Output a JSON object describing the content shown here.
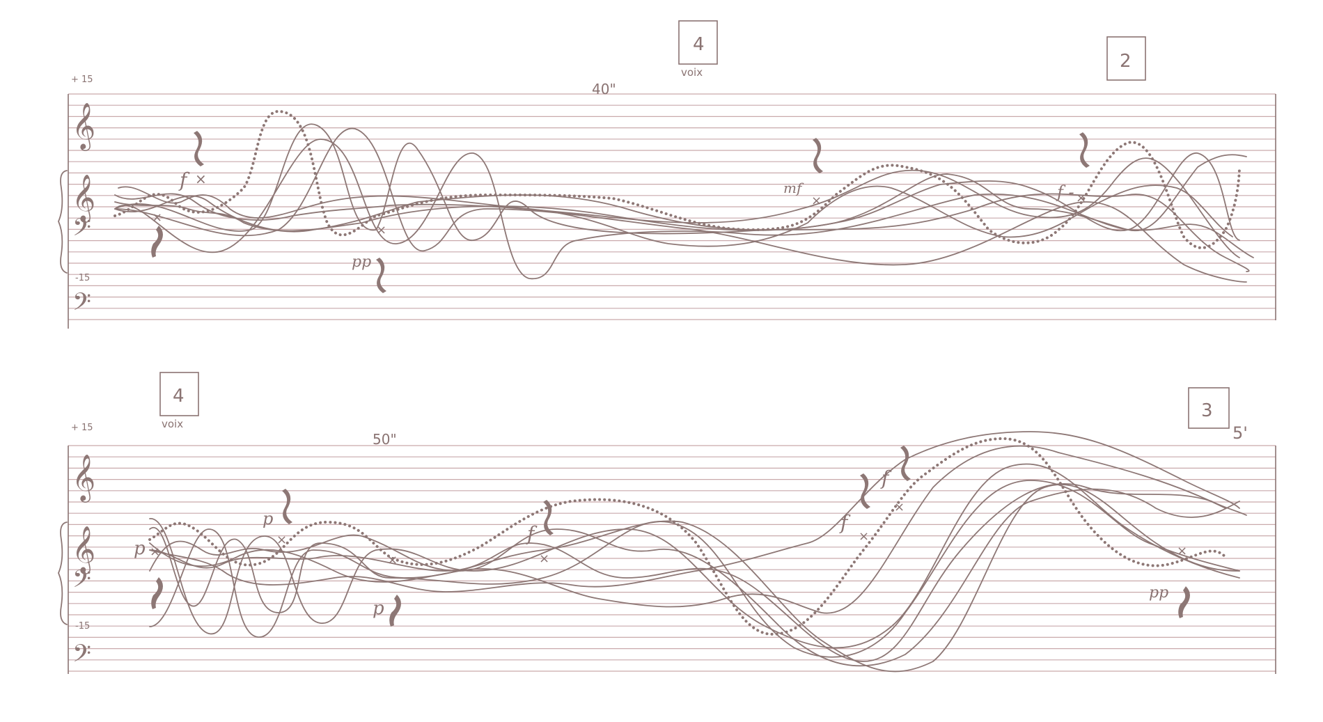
{
  "colors": {
    "ink": "#8d7775",
    "staff": "#c9a9ab",
    "paper": "#ffffff"
  },
  "system1": {
    "range_top": "+ 15",
    "range_bottom": "-15",
    "time_label": "40\"",
    "section_box": {
      "number": "4",
      "caption": "voix"
    },
    "end_box": {
      "number": "2"
    },
    "dynamics": [
      "f",
      "pp",
      "mf",
      "f -"
    ]
  },
  "system2": {
    "range_top": "+ 15",
    "range_bottom": "-15",
    "time_label": "50\"",
    "section_box": {
      "number": "4",
      "caption": "voix"
    },
    "end_box": {
      "number": "3",
      "suffix": "5'"
    },
    "dynamics": [
      "p",
      "p",
      "p",
      "f",
      "f",
      "f",
      "pp"
    ]
  }
}
